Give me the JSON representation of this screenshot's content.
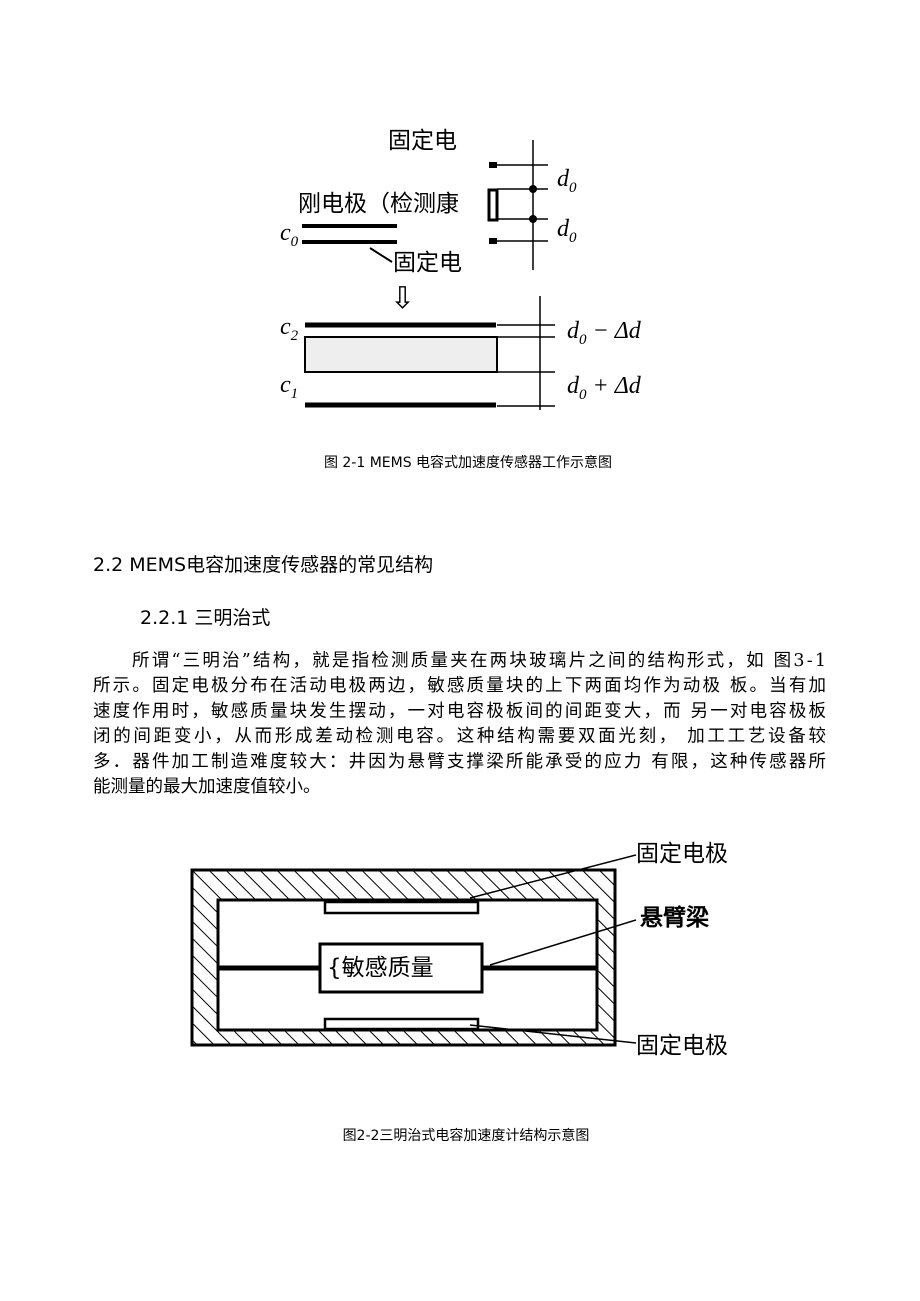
{
  "figure_1": {
    "labels": {
      "top_electrode": "固定电",
      "moving_electrode": "刚电极（检测康",
      "bottom_electrode": "固定电",
      "c0": {
        "base": "c",
        "sub": "0"
      },
      "gap_top": {
        "base": "d",
        "sub": "0"
      },
      "gap_bottom": {
        "base": "d",
        "sub": "0"
      },
      "c2": {
        "base": "c",
        "sub": "2"
      },
      "c1": {
        "base": "c",
        "sub": "1"
      },
      "gap_minus": {
        "base": "d",
        "sub": "0",
        "rest": " − Δd"
      },
      "gap_plus": {
        "base": "d",
        "sub": "0",
        "rest": " + Δd"
      }
    },
    "caption": "图 2-1 MEMS 电容式加速度传感器工作示意图"
  },
  "section": {
    "heading": "2.2 MEMS电容加速度传感器的常见结构",
    "subheading": "2.2.1 三明治式",
    "paragraph": [
      "所谓“三明治”结构，就是指检测质量夹在两块玻璃片之间的结构形式，如 图3-1",
      "所示。固定电极分布在活动电极两边，敏感质量块的上下两面均作为动极 板。当有加",
      "速度作用时，敏感质量块发生摆动，一对电容极板间的间距变大，而 另一对电容极板",
      "闭的间距变小，从而形成差动检测电容。这种结构需要双面光刻， 加工工艺设备较",
      "多．器件加工制造难度较大：井因为悬臂支撑梁所能承受的应力 有限，这种传感器所",
      "能测量的最大加速度值较小。"
    ]
  },
  "figure_2": {
    "labels": {
      "top_electrode": "固定电极",
      "beam": "悬臂梁",
      "mass": "{敏感质量",
      "bottom_electrode": "固定电极"
    },
    "caption": "图2-2三明治式电容加速度计结构示意图"
  }
}
